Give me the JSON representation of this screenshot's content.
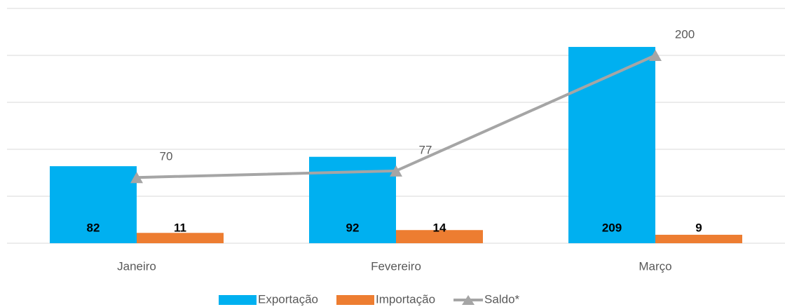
{
  "chart_data": {
    "type": "bar_line",
    "categories": [
      "Janeiro",
      "Fevereiro",
      "Março"
    ],
    "series": [
      {
        "name": "Exportação",
        "color": "#00b0f0",
        "type": "bar",
        "values": [
          82,
          92,
          209
        ]
      },
      {
        "name": "Importação",
        "color": "#ed7d31",
        "type": "bar",
        "values": [
          11,
          14,
          9
        ]
      },
      {
        "name": "Saldo*",
        "color": "#a5a5a5",
        "type": "line",
        "values": [
          70,
          77,
          200
        ]
      }
    ],
    "ylim": [
      0,
      250
    ],
    "yticks": [
      0,
      50,
      100,
      150,
      200,
      250
    ],
    "grid": true,
    "legend": "bottom"
  }
}
